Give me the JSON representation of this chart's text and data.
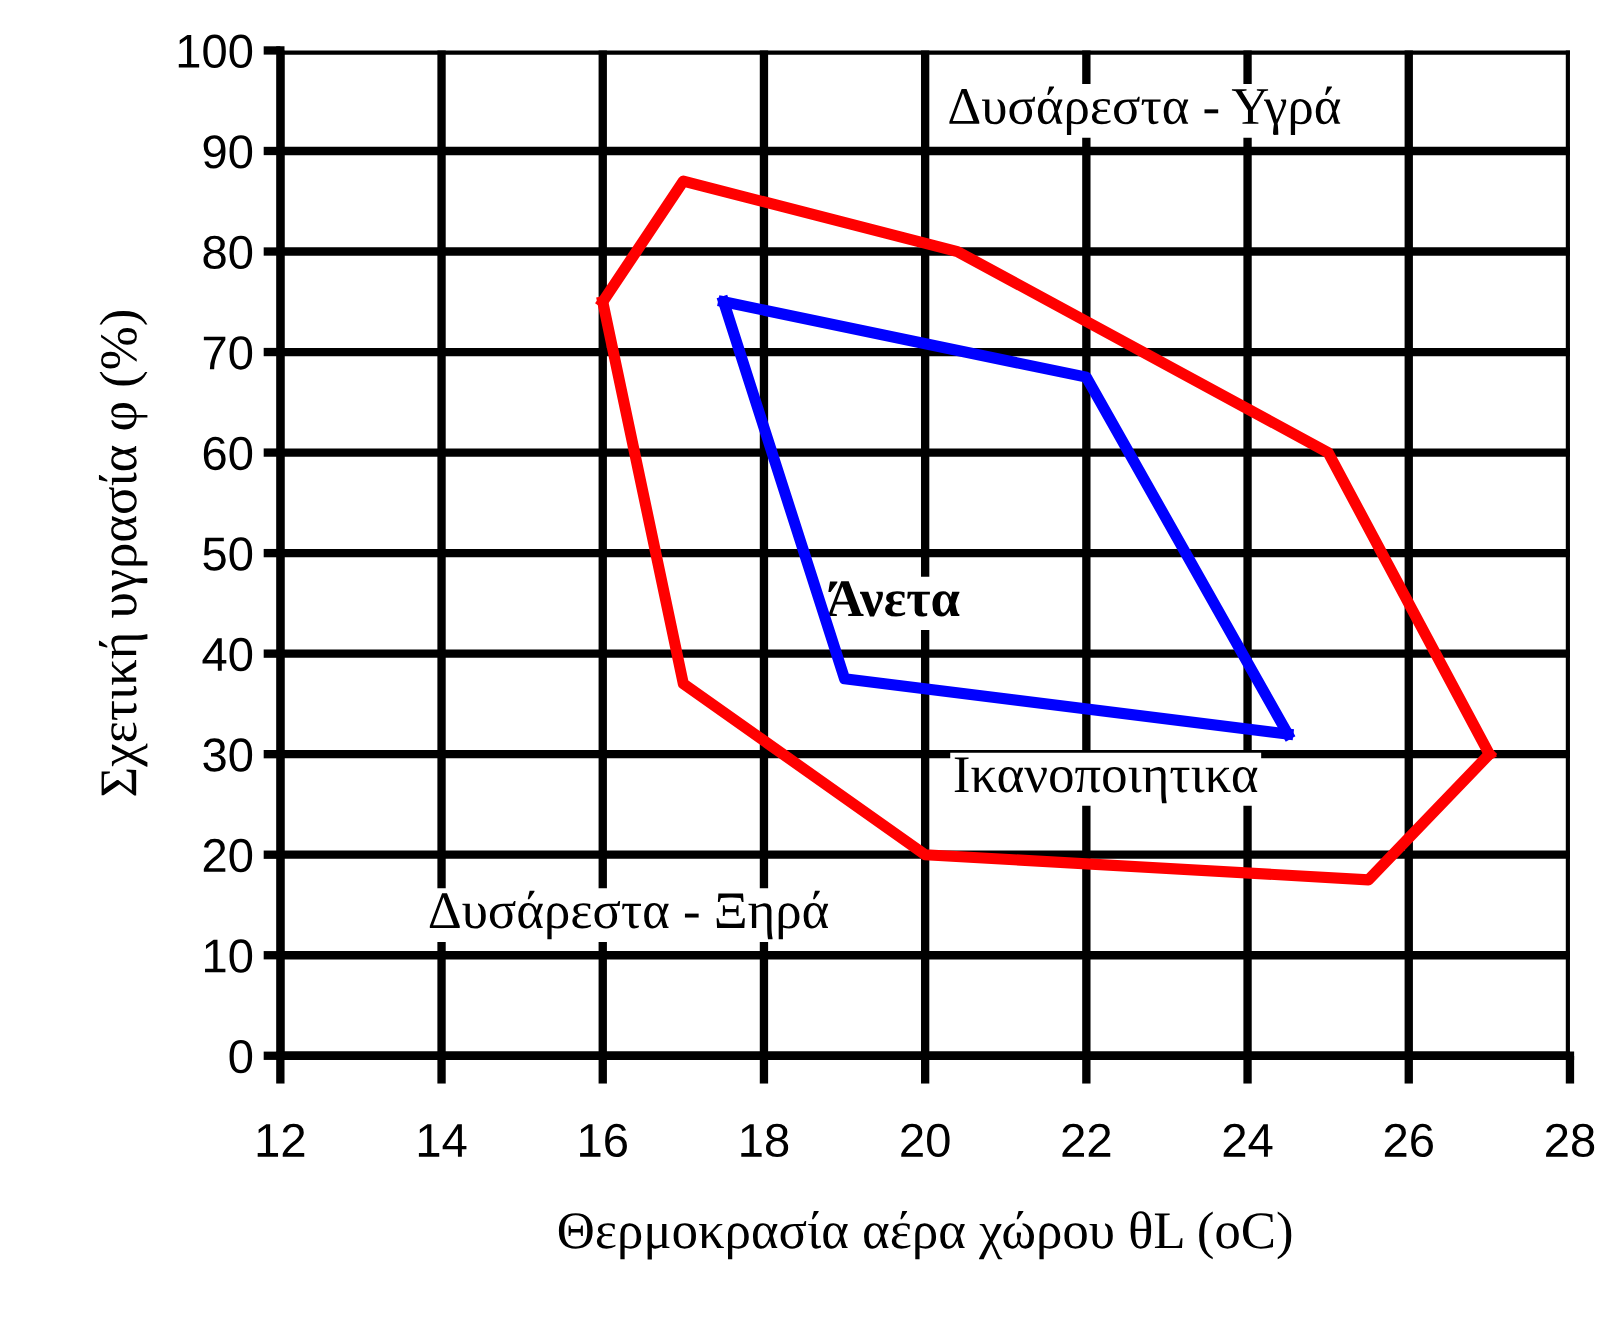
{
  "chart_data": {
    "type": "line",
    "xlabel": "Θερμοκρασία αέρα χώρου θL (oC)",
    "ylabel": "Σχετική υγρασία φ (%)",
    "series": [
      {
        "color": "#ff0000",
        "x": [
          16,
          17,
          20.4,
          25,
          27
        ],
        "values": [
          75,
          87,
          80,
          60,
          30
        ]
      },
      {
        "color": "#ff0000",
        "x": [
          16,
          17,
          20,
          25.5,
          27
        ],
        "values": [
          75,
          37,
          20,
          17.5,
          30
        ]
      },
      {
        "color": "#0000ff",
        "x": [
          17.5,
          22,
          24.5
        ],
        "values": [
          75,
          67.5,
          32
        ]
      },
      {
        "color": "#0000ff",
        "x": [
          17.5,
          19,
          24.5
        ],
        "values": [
          75,
          37.5,
          32
        ]
      }
    ],
    "annotations": [
      "Δυσάρεστα - Υγρά",
      "Άνετα",
      "Ικανοποιητικα",
      "Δυσάρεστα - Ξηρά"
    ],
    "xlim": [
      12,
      28
    ],
    "xticks": [
      12,
      14,
      16,
      18,
      20,
      22,
      24,
      26,
      28
    ],
    "ylim": [
      0,
      100
    ],
    "yticks": [
      0,
      10,
      20,
      30,
      40,
      50,
      60,
      70,
      80,
      90,
      100
    ],
    "grid": true,
    "marker": "none",
    "line_style": "solid"
  }
}
